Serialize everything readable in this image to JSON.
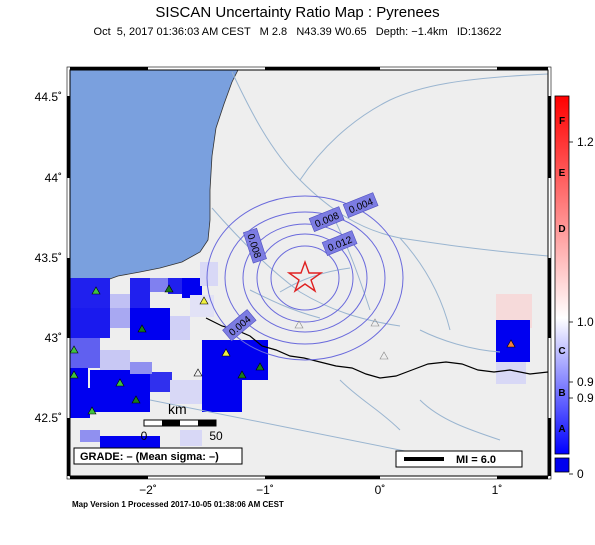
{
  "header": {
    "title": "SISCAN Uncertainty Ratio Map : Pyrenees",
    "subtitle": "Oct  5, 2017 01:36:03 AM CEST   M 2.8   N43.39 W0.65   Depth: −1.4km   ID:13622"
  },
  "map": {
    "lat_ticks": [
      "44.5˚",
      "44˚",
      "43.5˚",
      "43˚",
      "42.5˚"
    ],
    "lon_ticks": [
      "−2˚",
      "−1˚",
      "0˚",
      "1˚"
    ],
    "contours": [
      "0.004",
      "0.008",
      "0.012",
      "0.008",
      "0.004"
    ],
    "scalebar": {
      "unit": "km",
      "start": "0",
      "end": "50"
    },
    "grade": "GRADE: – (Mean sigma: –)",
    "mi_label": "MI = 6.0",
    "epicenter": {
      "lat": 43.39,
      "lon": -0.65
    },
    "colors": {
      "land": "#eeeeee",
      "sea": "#7aa0de",
      "rivers": "#9ab5d0",
      "border": "#000000",
      "contour": "#6a6adc",
      "epicenter": "#e02020"
    }
  },
  "colorbar": {
    "grades": [
      "F",
      "E",
      "D",
      "C",
      "B",
      "A"
    ],
    "values": [
      "1.2",
      "1.0",
      "0.9",
      "0.9",
      "0"
    ],
    "colors": {
      "top": "#ff0000",
      "mid": "#ffffff",
      "bottom": "#0000ff"
    }
  },
  "footer": {
    "text": "Map Version 1 Processed 2017-10-05 01:38:06 AM CEST"
  }
}
